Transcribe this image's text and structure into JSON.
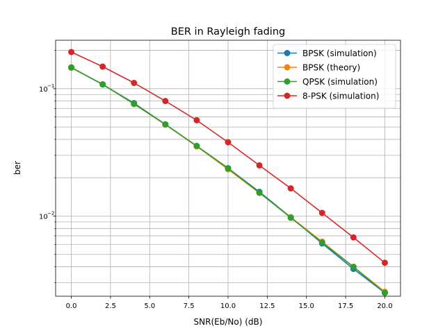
{
  "chart_data": {
    "type": "line",
    "title": "BER in Rayleigh fading",
    "xlabel": "SNR(Eb/No)  (dB)",
    "ylabel": "ber",
    "yscale": "log",
    "xlim": [
      -1,
      21
    ],
    "ylim": [
      0.00235,
      0.24
    ],
    "x_ticks": [
      0,
      2.5,
      5,
      7.5,
      10,
      12.5,
      15,
      17.5,
      20
    ],
    "x_tick_labels": [
      "0.0",
      "2.5",
      "5.0",
      "7.5",
      "10.0",
      "12.5",
      "15.0",
      "17.5",
      "20.0"
    ],
    "y_major_ticks": [
      0.01,
      0.1
    ],
    "y_tick_labels": [
      "10",
      "10"
    ],
    "y_tick_exponents": [
      "−2",
      "−1"
    ],
    "y_minor_ticks": [
      0.003,
      0.004,
      0.005,
      0.006,
      0.007,
      0.008,
      0.009,
      0.02,
      0.03,
      0.04,
      0.05,
      0.06,
      0.07,
      0.08,
      0.09,
      0.2
    ],
    "grid": true,
    "legend_position": "top-right",
    "x": [
      0,
      2,
      4,
      6,
      8,
      10,
      12,
      14,
      16,
      18,
      20
    ],
    "series": [
      {
        "name": "BPSK (simulation)",
        "color": "#1f77b4",
        "values": [
          0.146,
          0.108,
          0.077,
          0.0525,
          0.0355,
          0.0238,
          0.0155,
          0.0098,
          0.0061,
          0.00385,
          0.0025
        ]
      },
      {
        "name": "BPSK (theory)",
        "color": "#ff7f0e",
        "values": [
          0.146,
          0.1085,
          0.0758,
          0.0522,
          0.0353,
          0.0233,
          0.0152,
          0.0098,
          0.0063,
          0.004,
          0.00255
        ]
      },
      {
        "name": "QPSK (simulation)",
        "color": "#2ca02c",
        "values": [
          0.147,
          0.108,
          0.076,
          0.0525,
          0.0355,
          0.0237,
          0.0153,
          0.0097,
          0.0062,
          0.004,
          0.0025
        ]
      },
      {
        "name": "8-PSK (simulation)",
        "color": "#d62728",
        "values": [
          0.194,
          0.149,
          0.111,
          0.08,
          0.0565,
          0.038,
          0.025,
          0.0165,
          0.0106,
          0.0068,
          0.0043
        ]
      }
    ]
  }
}
